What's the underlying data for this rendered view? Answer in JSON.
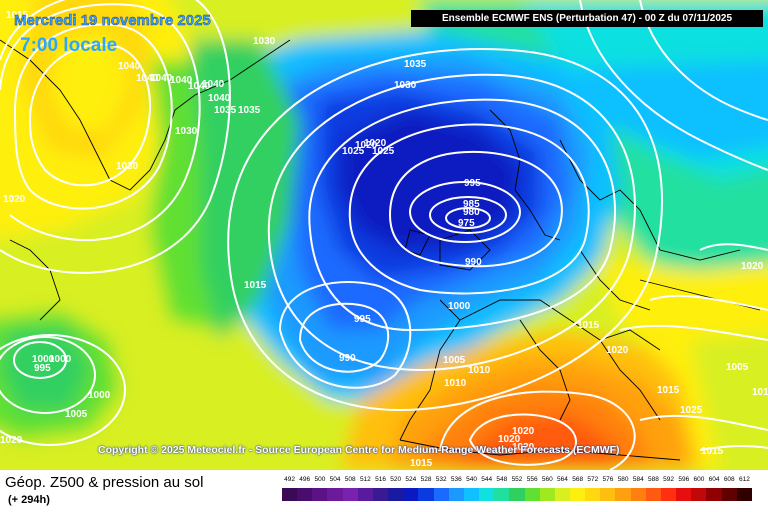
{
  "header": {
    "date": "Mercredi 19 novembre 2025",
    "time": "7:00 locale",
    "run": "Ensemble ECMWF ENS  (Perturbation 47)  - 00 Z du 07/11/2025"
  },
  "copyright": "Copyright © 2025 Meteociel.fr - Source European Centre for Medium-Range Weather Forecasts (ECMWF)",
  "footer": {
    "title": "Géop. Z500 & pression au sol",
    "lead": "(+ 294h)"
  },
  "scale": {
    "values": [
      "492",
      "496",
      "500",
      "504",
      "508",
      "512",
      "516",
      "520",
      "524",
      "528",
      "532",
      "536",
      "540",
      "544",
      "548",
      "552",
      "556",
      "560",
      "564",
      "568",
      "572",
      "576",
      "580",
      "584",
      "588",
      "592",
      "596",
      "600",
      "604",
      "608",
      "612"
    ],
    "colors": [
      "#3a0a55",
      "#4a0d6e",
      "#5a1285",
      "#6a1a9a",
      "#7a22b0",
      "#5a1aa0",
      "#3a1a90",
      "#1a1aa0",
      "#0a1ac0",
      "#0a3ae0",
      "#1a6aff",
      "#1a9aff",
      "#10c0ff",
      "#10e0e0",
      "#20e0a0",
      "#30d060",
      "#60e030",
      "#a0e820",
      "#d8ef20",
      "#ffef10",
      "#ffd810",
      "#ffbf10",
      "#ffa010",
      "#ff8010",
      "#ff5a10",
      "#ff3010",
      "#e80e0e",
      "#c00808",
      "#900000",
      "#600000",
      "#300000"
    ]
  },
  "map": {
    "isobar_labels": [
      "1015",
      "1020",
      "1030",
      "1040",
      "1040",
      "1040",
      "1040",
      "1040",
      "1040",
      "1040",
      "1035",
      "1035",
      "1030",
      "1030",
      "1020",
      "1025",
      "1035",
      "1030",
      "1020",
      "1025",
      "1015",
      "995",
      "985",
      "980",
      "975",
      "990",
      "1000",
      "995",
      "990",
      "1000",
      "1005",
      "1010",
      "1015",
      "1020",
      "1025",
      "1015",
      "1020",
      "1020",
      "1020",
      "1020",
      "1015",
      "1000",
      "1005",
      "1010",
      "1000",
      "995",
      "1020",
      "1005",
      "1010",
      "1015"
    ],
    "colors": {
      "deep_low": "#0a1ac0",
      "low": "#1a6aff",
      "mid": "#10c0ff",
      "green": "#30d060",
      "yellow": "#ffef10",
      "orange": "#ffa010",
      "red": "#ff5a10",
      "isobar": "#ffffff",
      "coast": "#000000"
    }
  }
}
